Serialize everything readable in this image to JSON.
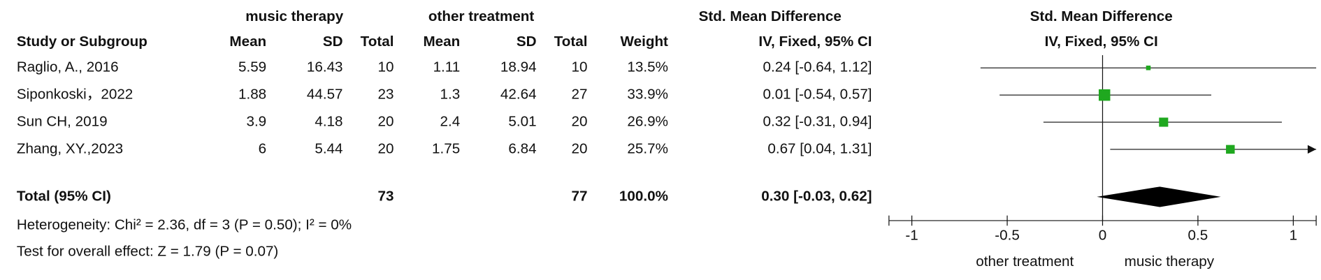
{
  "chart_data": {
    "type": "forest",
    "group_headers": [
      "music therapy",
      "other treatment"
    ],
    "effect_header": "Std. Mean Difference",
    "effect_subheader": "IV, Fixed, 95% CI",
    "columns": [
      "Study or Subgroup",
      "Mean",
      "SD",
      "Total",
      "Mean",
      "SD",
      "Total",
      "Weight",
      "IV, Fixed, 95% CI"
    ],
    "plot_title": "Std. Mean Difference",
    "plot_subtitle": "IV, Fixed, 95% CI",
    "studies": [
      {
        "name": "Raglio, A., 2016",
        "mean1": 5.59,
        "sd1": 16.43,
        "n1": 10,
        "mean2": 1.11,
        "sd2": 18.94,
        "n2": 10,
        "weight": 13.5,
        "weight_label": "13.5%",
        "smd": 0.24,
        "lower": -0.64,
        "upper": 1.12,
        "effect_label": "0.24 [-0.64, 1.12]"
      },
      {
        "name": "Siponkoski，2022",
        "mean1": 1.88,
        "sd1": 44.57,
        "n1": 23,
        "mean2": 1.3,
        "sd2": 42.64,
        "n2": 27,
        "weight": 33.9,
        "weight_label": "33.9%",
        "smd": 0.01,
        "lower": -0.54,
        "upper": 0.57,
        "effect_label": "0.01 [-0.54, 0.57]"
      },
      {
        "name": "Sun CH, 2019",
        "mean1": 3.9,
        "sd1": 4.18,
        "n1": 20,
        "mean2": 2.4,
        "sd2": 5.01,
        "n2": 20,
        "weight": 26.9,
        "weight_label": "26.9%",
        "smd": 0.32,
        "lower": -0.31,
        "upper": 0.94,
        "effect_label": "0.32 [-0.31, 0.94]"
      },
      {
        "name": "Zhang, XY.,2023",
        "mean1": 6,
        "sd1": 5.44,
        "n1": 20,
        "mean2": 1.75,
        "sd2": 6.84,
        "n2": 20,
        "weight": 25.7,
        "weight_label": "25.7%",
        "smd": 0.67,
        "lower": 0.04,
        "upper": 1.31,
        "effect_label": "0.67 [0.04, 1.31]"
      }
    ],
    "total": {
      "name": "Total (95% CI)",
      "n1": 73,
      "n2": 77,
      "weight": 100,
      "weight_label": "100.0%",
      "smd": 0.3,
      "lower": -0.03,
      "upper": 0.62,
      "effect_label": "0.30 [-0.03, 0.62]"
    },
    "heterogeneity": "Heterogeneity: Chi² = 2.36, df = 3 (P = 0.50); I² = 0%",
    "overall_effect": "Test for overall effect: Z = 1.79 (P = 0.07)",
    "xlim": [
      -1.12,
      1.12
    ],
    "xticks": [
      -1,
      -0.5,
      0,
      0.5,
      1
    ],
    "xlabel_left": "other treatment",
    "xlabel_right": "music therapy",
    "color": "#1fa81f"
  }
}
